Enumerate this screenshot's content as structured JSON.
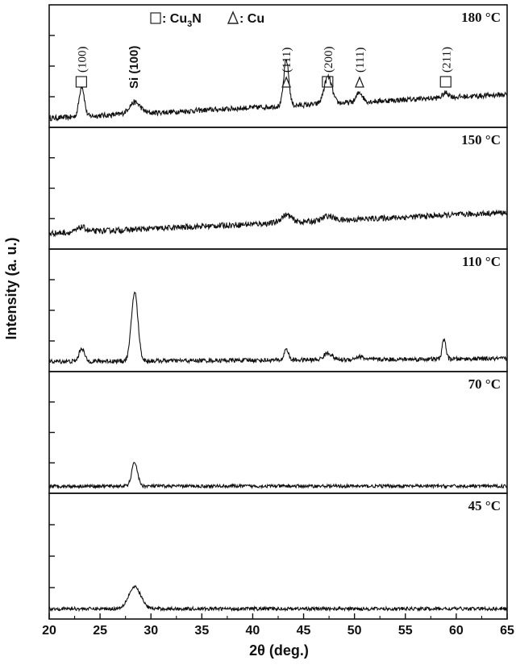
{
  "chart_data": {
    "type": "line",
    "xlabel": "2θ (deg.)",
    "ylabel": "Intensity (a. u.)",
    "xlim": [
      20,
      65
    ],
    "xticks": [
      20,
      25,
      30,
      35,
      40,
      45,
      50,
      55,
      60,
      65
    ],
    "legend": {
      "square_label": ": Cu",
      "square_sub": "3",
      "square_tail": "N",
      "triangle_label": ": Cu"
    },
    "panels": [
      {
        "label": "180 °C",
        "baseline_start": 0.07,
        "baseline_end": 0.32,
        "noise": 0.055,
        "peaks": [
          {
            "x": 23.2,
            "h": 0.32,
            "w": 0.25
          },
          {
            "x": 28.4,
            "h": 0.12,
            "w": 0.55
          },
          {
            "x": 43.3,
            "h": 0.48,
            "w": 0.25
          },
          {
            "x": 47.4,
            "h": 0.28,
            "w": 0.38
          },
          {
            "x": 50.5,
            "h": 0.1,
            "w": 0.3
          },
          {
            "x": 59.0,
            "h": 0.05,
            "w": 0.3
          }
        ],
        "annotations": [
          {
            "x": 23.2,
            "marker": "square",
            "text": "(100)"
          },
          {
            "x": 28.4,
            "marker": "si",
            "text": "Si (100)"
          },
          {
            "x": 43.3,
            "marker": "triangle",
            "text": "(111)"
          },
          {
            "x": 47.4,
            "marker": "square",
            "text": "(200)"
          },
          {
            "x": 50.5,
            "marker": "triangle",
            "text": "(111)"
          },
          {
            "x": 59.0,
            "marker": "square",
            "text": "(211)"
          }
        ]
      },
      {
        "label": "150 °C",
        "baseline_start": 0.14,
        "baseline_end": 0.36,
        "noise": 0.06,
        "peaks": [
          {
            "x": 23.2,
            "h": 0.05,
            "w": 0.4
          },
          {
            "x": 43.3,
            "h": 0.08,
            "w": 0.5
          },
          {
            "x": 47.4,
            "h": 0.05,
            "w": 0.5
          }
        ],
        "annotations": []
      },
      {
        "label": "110 °C",
        "baseline_start": 0.08,
        "baseline_end": 0.11,
        "noise": 0.045,
        "peaks": [
          {
            "x": 23.2,
            "h": 0.14,
            "w": 0.25
          },
          {
            "x": 28.4,
            "h": 0.72,
            "w": 0.32
          },
          {
            "x": 43.3,
            "h": 0.12,
            "w": 0.2
          },
          {
            "x": 47.4,
            "h": 0.07,
            "w": 0.4
          },
          {
            "x": 50.5,
            "h": 0.03,
            "w": 0.4
          },
          {
            "x": 58.8,
            "h": 0.21,
            "w": 0.18
          }
        ],
        "annotations": []
      },
      {
        "label": "70 °C",
        "baseline_start": 0.05,
        "baseline_end": 0.05,
        "noise": 0.035,
        "peaks": [
          {
            "x": 28.4,
            "h": 0.25,
            "w": 0.28
          }
        ],
        "annotations": []
      },
      {
        "label": "45 °C",
        "baseline_start": 0.08,
        "baseline_end": 0.08,
        "noise": 0.035,
        "peaks": [
          {
            "x": 28.4,
            "h": 0.22,
            "w": 0.6
          }
        ],
        "annotations": []
      }
    ]
  }
}
